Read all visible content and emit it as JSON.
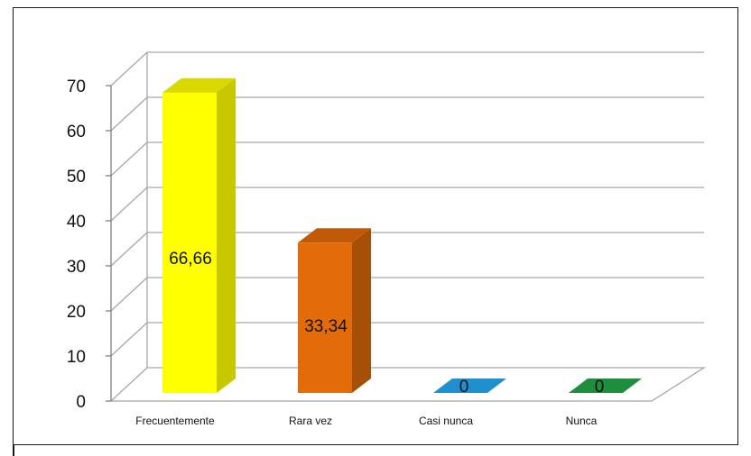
{
  "chart_data": {
    "type": "bar",
    "style": "3d",
    "categories": [
      "Frecuentemente",
      "Rara vez",
      "Casi nunca",
      "Nunca"
    ],
    "values": [
      66.66,
      33.34,
      0,
      0
    ],
    "value_labels": [
      "66,66",
      "33,34",
      "0",
      "0"
    ],
    "colors": [
      "#ffff00",
      "#e36c0a",
      "#1f8fce",
      "#1e8e3e"
    ],
    "side_colors": [
      "#c8c800",
      "#a54f07",
      "#166e9f",
      "#146b2c"
    ],
    "top_colors": [
      "#d9d900",
      "#c05a08",
      "#1a7fb8",
      "#19803a"
    ],
    "ylim": [
      0,
      70
    ],
    "yticks": [
      "0",
      "10",
      "20",
      "30",
      "40",
      "50",
      "60",
      "70"
    ],
    "grid": true,
    "legend": "none"
  }
}
